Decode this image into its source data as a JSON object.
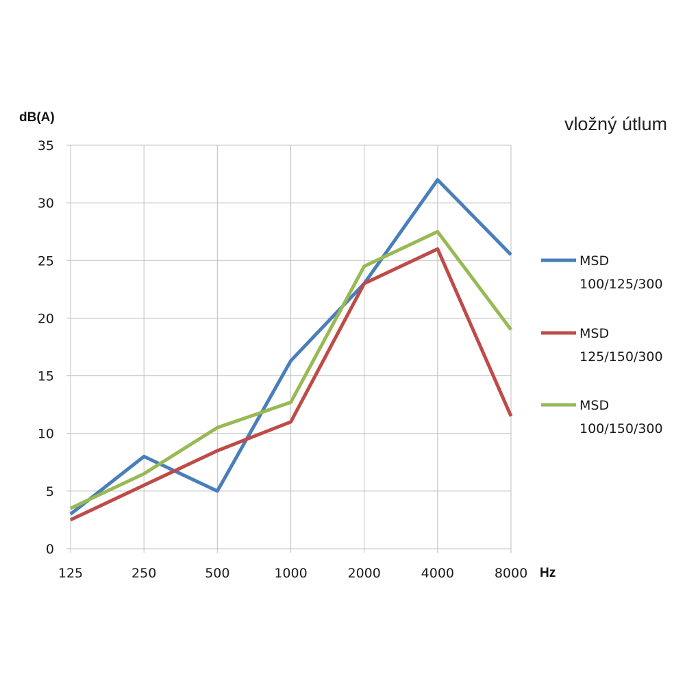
{
  "chart_data": {
    "type": "line",
    "title": "vložný útlum",
    "ylabel": "dB(A)",
    "xlabel": "Hz",
    "categories": [
      "125",
      "250",
      "500",
      "1000",
      "2000",
      "4000",
      "8000"
    ],
    "yticks": [
      "0",
      "5",
      "10",
      "15",
      "20",
      "25",
      "30",
      "35"
    ],
    "ylim": [
      0,
      35
    ],
    "grid": true,
    "legend_position": "right",
    "series": [
      {
        "name_line1": "MSD",
        "name_line2": "100/125/300",
        "color": "#4a7ebb",
        "values": [
          3,
          8,
          5,
          16.3,
          23,
          32,
          25.5
        ]
      },
      {
        "name_line1": "MSD",
        "name_line2": "125/150/300",
        "color": "#be4b48",
        "values": [
          2.5,
          5.5,
          8.5,
          11,
          23,
          26,
          11.5
        ]
      },
      {
        "name_line1": "MSD",
        "name_line2": "100/150/300",
        "color": "#98b954",
        "values": [
          3.5,
          6.5,
          10.5,
          12.7,
          24.5,
          27.5,
          19
        ]
      }
    ]
  }
}
